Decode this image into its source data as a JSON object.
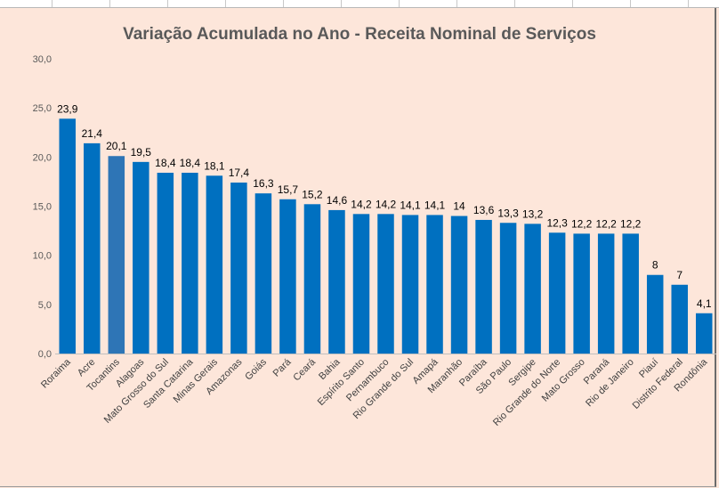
{
  "chart_data": {
    "type": "bar",
    "title": "Variação Acumulada no Ano - Receita Nominal de Serviços",
    "xlabel": "",
    "ylabel": "",
    "ylim": [
      0,
      30
    ],
    "yticks": [
      "0,0",
      "5,0",
      "10,0",
      "15,0",
      "20,0",
      "25,0",
      "30,0"
    ],
    "grid": false,
    "categories": [
      "Roraima",
      "Acre",
      "Tocantins",
      "Alagoas",
      "Mato Grosso do Sul",
      "Santa Catarina",
      "Minas Gerais",
      "Amazonas",
      "Goiás",
      "Pará",
      "Ceará",
      "Bahia",
      "Espírito Santo",
      "Pernambuco",
      "Rio Grande do Sul",
      "Amapá",
      "Maranhão",
      "Paraíba",
      "São Paulo",
      "Sergipe",
      "Rio Grande do Norte",
      "Mato Grosso",
      "Paraná",
      "Rio de Janeiro",
      "Piauí",
      "Distrito Federal",
      "Rondônia"
    ],
    "values": [
      23.9,
      21.4,
      20.1,
      19.5,
      18.4,
      18.4,
      18.1,
      17.4,
      16.3,
      15.7,
      15.2,
      14.6,
      14.2,
      14.2,
      14.1,
      14.1,
      14,
      13.6,
      13.3,
      13.2,
      12.3,
      12.2,
      12.2,
      12.2,
      8,
      7,
      4.1
    ],
    "data_labels": [
      "23,9",
      "21,4",
      "20,1",
      "19,5",
      "18,4",
      "18,4",
      "18,1",
      "17,4",
      "16,3",
      "15,7",
      "15,2",
      "14,6",
      "14,2",
      "14,2",
      "14,1",
      "14,1",
      "14",
      "13,6",
      "13,3",
      "13,2",
      "12,3",
      "12,2",
      "12,2",
      "12,2",
      "8",
      "7",
      "4,1"
    ],
    "colors": {
      "bar": "#0070c0",
      "highlight": "#2e75b6",
      "background": "#fde6da"
    },
    "highlight_index": 2
  }
}
